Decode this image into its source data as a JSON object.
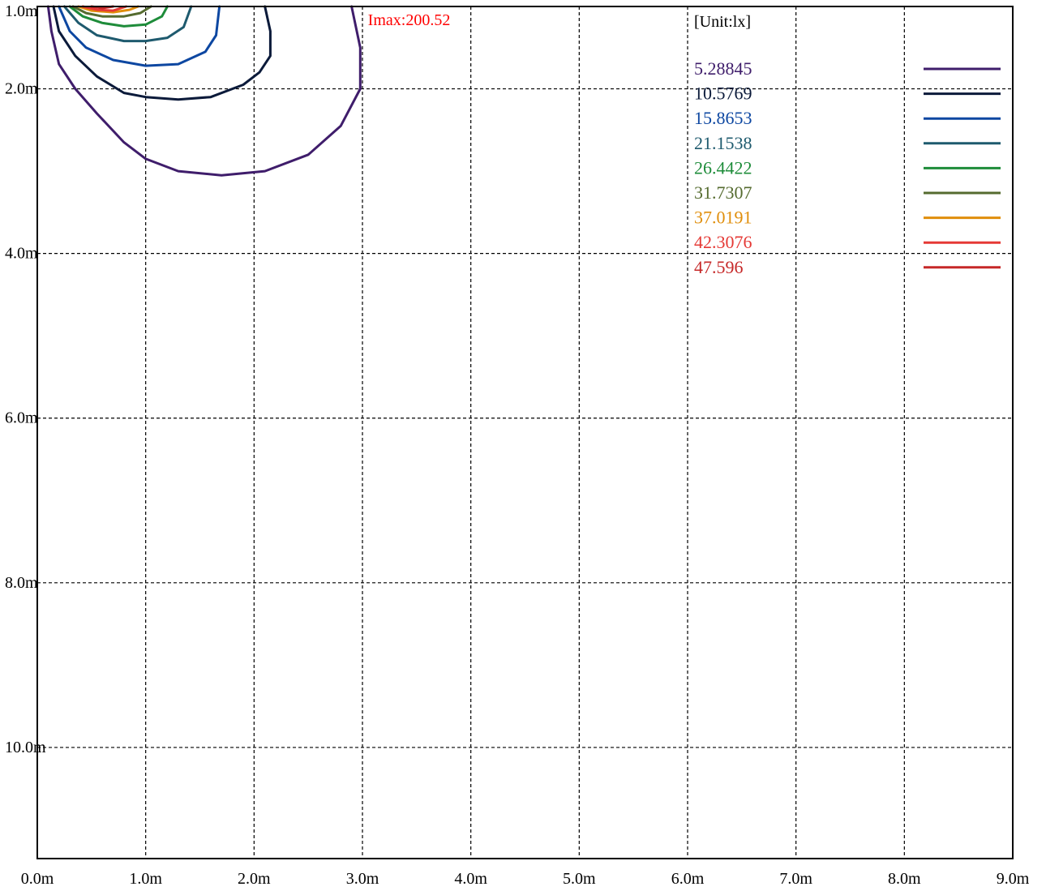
{
  "chart_data": {
    "type": "contour",
    "title": "",
    "unit_label": "[Unit:lx]",
    "max_label": "Imax:200.52",
    "x_ticks": [
      "0.0m",
      "1.0m",
      "2.0m",
      "3.0m",
      "4.0m",
      "5.0m",
      "6.0m",
      "7.0m",
      "8.0m",
      "9.0m"
    ],
    "y_ticks": [
      "1.0m",
      "2.0m",
      "4.0m",
      "6.0m",
      "8.0m",
      "10.0m"
    ],
    "xlim": [
      0,
      9
    ],
    "ylim": [
      1.0,
      11.35
    ],
    "grid": true,
    "legend_position": "top-right",
    "series": [
      {
        "value": "5.28845",
        "color": "#3f1d6b",
        "points": [
          [
            0.1,
            1.0
          ],
          [
            0.13,
            1.3
          ],
          [
            0.2,
            1.7
          ],
          [
            0.35,
            2.0
          ],
          [
            0.55,
            2.3
          ],
          [
            0.8,
            2.65
          ],
          [
            1.0,
            2.85
          ],
          [
            1.3,
            3.0
          ],
          [
            1.7,
            3.05
          ],
          [
            2.1,
            3.0
          ],
          [
            2.5,
            2.8
          ],
          [
            2.8,
            2.45
          ],
          [
            2.98,
            2.0
          ],
          [
            2.98,
            1.5
          ],
          [
            2.9,
            1.0
          ]
        ]
      },
      {
        "value": "10.5769",
        "color": "#0b1a3a",
        "points": [
          [
            0.15,
            1.0
          ],
          [
            0.2,
            1.3
          ],
          [
            0.35,
            1.6
          ],
          [
            0.55,
            1.85
          ],
          [
            0.8,
            2.05
          ],
          [
            1.0,
            2.1
          ],
          [
            1.3,
            2.13
          ],
          [
            1.6,
            2.1
          ],
          [
            1.9,
            1.95
          ],
          [
            2.05,
            1.8
          ],
          [
            2.15,
            1.6
          ],
          [
            2.15,
            1.3
          ],
          [
            2.1,
            1.0
          ]
        ]
      },
      {
        "value": "15.8653",
        "color": "#0d47a1",
        "points": [
          [
            0.2,
            1.0
          ],
          [
            0.3,
            1.3
          ],
          [
            0.45,
            1.5
          ],
          [
            0.7,
            1.65
          ],
          [
            1.0,
            1.72
          ],
          [
            1.3,
            1.7
          ],
          [
            1.55,
            1.55
          ],
          [
            1.65,
            1.35
          ],
          [
            1.68,
            1.0
          ]
        ]
      },
      {
        "value": "21.1538",
        "color": "#1e5a6e",
        "points": [
          [
            0.25,
            1.0
          ],
          [
            0.38,
            1.2
          ],
          [
            0.55,
            1.35
          ],
          [
            0.8,
            1.42
          ],
          [
            1.0,
            1.42
          ],
          [
            1.2,
            1.38
          ],
          [
            1.35,
            1.25
          ],
          [
            1.42,
            1.0
          ]
        ]
      },
      {
        "value": "26.4422",
        "color": "#1e8c3a",
        "points": [
          [
            0.3,
            1.0
          ],
          [
            0.42,
            1.12
          ],
          [
            0.6,
            1.2
          ],
          [
            0.8,
            1.24
          ],
          [
            1.0,
            1.22
          ],
          [
            1.15,
            1.12
          ],
          [
            1.2,
            1.0
          ]
        ]
      },
      {
        "value": "31.7307",
        "color": "#556b2f",
        "points": [
          [
            0.33,
            1.0
          ],
          [
            0.45,
            1.08
          ],
          [
            0.6,
            1.12
          ],
          [
            0.8,
            1.12
          ],
          [
            0.95,
            1.08
          ],
          [
            1.05,
            1.0
          ]
        ]
      },
      {
        "value": "37.0191",
        "color": "#e08e0b",
        "points": [
          [
            0.38,
            1.0
          ],
          [
            0.5,
            1.05
          ],
          [
            0.7,
            1.07
          ],
          [
            0.85,
            1.04
          ],
          [
            0.93,
            1.0
          ]
        ]
      },
      {
        "value": "42.3076",
        "color": "#e53935",
        "points": [
          [
            0.42,
            1.0
          ],
          [
            0.55,
            1.04
          ],
          [
            0.7,
            1.05
          ],
          [
            0.82,
            1.0
          ]
        ]
      },
      {
        "value": "47.596",
        "color": "#c62828",
        "points": [
          [
            0.5,
            1.0
          ],
          [
            0.6,
            1.02
          ],
          [
            0.7,
            1.0
          ]
        ]
      }
    ]
  }
}
